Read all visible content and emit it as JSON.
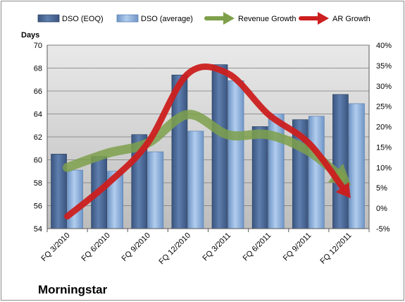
{
  "chart_data": {
    "type": "bar",
    "categories": [
      "FQ 3/2010",
      "FQ 6/2010",
      "FQ 9/2010",
      "FQ 12/2010",
      "FQ 3/2011",
      "FQ 6/2011",
      "FQ 9/2011",
      "FQ 12/2011"
    ],
    "series": [
      {
        "name": "DSO (EOQ)",
        "type": "bar",
        "axis": "left",
        "color": "#4f6d9c",
        "values": [
          60.5,
          60.3,
          62.2,
          67.4,
          68.3,
          62.9,
          63.5,
          65.7
        ]
      },
      {
        "name": "DSO (average)",
        "type": "bar",
        "axis": "left",
        "color": "#8fb3de",
        "values": [
          59.1,
          59.0,
          60.7,
          62.5,
          66.9,
          64.0,
          63.8,
          64.9
        ]
      },
      {
        "name": "Revenue Growth",
        "type": "line",
        "axis": "right",
        "color": "#7ea04b",
        "values": [
          10,
          13.5,
          16,
          23,
          18,
          18,
          14,
          6
        ]
      },
      {
        "name": "AR Growth",
        "type": "line",
        "axis": "right",
        "color": "#cc1f1f",
        "values": [
          -2,
          6,
          16,
          33,
          33,
          23,
          16,
          3
        ]
      }
    ],
    "y_left": {
      "label": "Days",
      "ylim": [
        54,
        70
      ],
      "ticks": [
        "54",
        "56",
        "58",
        "60",
        "62",
        "64",
        "66",
        "68",
        "70"
      ]
    },
    "y_right": {
      "ylim": [
        -5,
        40
      ],
      "ticks": [
        "-5%",
        "0%",
        "5%",
        "10%",
        "15%",
        "20%",
        "25%",
        "30%",
        "35%",
        "40%"
      ]
    },
    "grid": true,
    "legend_position": "top",
    "brand": "Morningstar"
  }
}
